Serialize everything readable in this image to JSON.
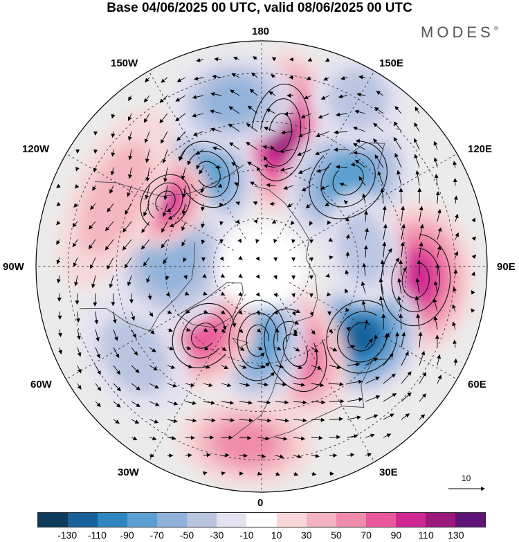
{
  "title": "Base 04/06/2025 00 UTC, valid 08/06/2025 00 UTC",
  "brand": "MODES",
  "brand_mark": "®",
  "longitude_labels": {
    "n180": "180",
    "e150": "150E",
    "e120": "120E",
    "e90": "90E",
    "e60": "60E",
    "e30": "30E",
    "n0": "0",
    "w30": "30W",
    "w60": "60W",
    "w90": "90W",
    "w120": "120W",
    "w150": "150W"
  },
  "reference_vector": {
    "value": "10",
    "icon": "arrow-right-icon"
  },
  "colorbar": {
    "colors": [
      "#0e3a5c",
      "#17609a",
      "#2f86c0",
      "#5a9fd0",
      "#8fb2da",
      "#b9c4e0",
      "#e4e2f0",
      "#ffffff",
      "#f8d8d8",
      "#f4b4bf",
      "#ef8bab",
      "#e8589a",
      "#d02893",
      "#9a1a7c",
      "#5f1277"
    ],
    "ticks": [
      "-130",
      "-110",
      "-90",
      "-70",
      "-50",
      "-30",
      "-10",
      "10",
      "30",
      "50",
      "70",
      "90",
      "110",
      "130"
    ]
  },
  "anomalies": [
    {
      "name": "n-pacific-high",
      "value": 110,
      "lon": 172,
      "lat": 48,
      "sx": 1.0,
      "sy": 1.7
    },
    {
      "name": "bering-low",
      "value": -70,
      "lon": 210,
      "lat": 57,
      "sx": 1.0,
      "sy": 1.2
    },
    {
      "name": "e-siberia-low",
      "value": -60,
      "lon": 135,
      "lat": 52,
      "sx": 1.2,
      "sy": 1.5
    },
    {
      "name": "central-asia-high",
      "value": 80,
      "lon": 85,
      "lat": 42,
      "sx": 1.6,
      "sy": 1.2
    },
    {
      "name": "ural-low",
      "value": -100,
      "lon": 55,
      "lat": 52,
      "sx": 1.3,
      "sy": 1.2
    },
    {
      "name": "scandinavia-high",
      "value": 60,
      "lon": 22,
      "lat": 62,
      "sx": 1.0,
      "sy": 1.5
    },
    {
      "name": "n-atlantic-low",
      "value": -60,
      "lon": 357,
      "lat": 67,
      "sx": 1.0,
      "sy": 1.4
    },
    {
      "name": "greenland-high",
      "value": 60,
      "lon": 320,
      "lat": 62,
      "sx": 1.0,
      "sy": 1.2
    },
    {
      "name": "canada-low",
      "value": -40,
      "lon": 265,
      "lat": 62,
      "sx": 1.5,
      "sy": 1.3
    },
    {
      "name": "ne-pacific-high",
      "value": 80,
      "lon": 236,
      "lat": 54,
      "sx": 1.0,
      "sy": 0.8
    },
    {
      "name": "pacific-ridge",
      "value": 30,
      "lon": 245,
      "lat": 40,
      "sx": 2.0,
      "sy": 0.9
    },
    {
      "name": "nw-pacific-low",
      "value": -40,
      "lon": 190,
      "lat": 38,
      "sx": 1.3,
      "sy": 1.0
    },
    {
      "name": "mediterranean-high",
      "value": 40,
      "lon": 355,
      "lat": 35,
      "sx": 1.4,
      "sy": 0.9
    },
    {
      "name": "atlantic-low",
      "value": -30,
      "lon": 305,
      "lat": 42,
      "sx": 1.4,
      "sy": 1.0
    },
    {
      "name": "central-asia-low",
      "value": -30,
      "lon": 100,
      "lat": 58,
      "sx": 1.2,
      "sy": 0.8
    },
    {
      "name": "far-east-low",
      "value": -30,
      "lon": 150,
      "lat": 30,
      "sx": 1.0,
      "sy": 1.0
    }
  ]
}
